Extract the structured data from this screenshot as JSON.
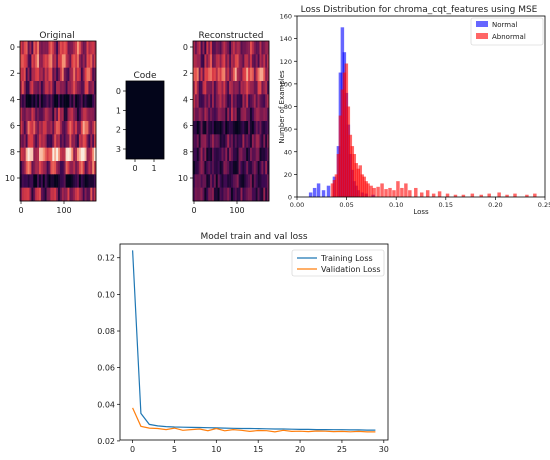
{
  "panels": {
    "original": {
      "title": "Original",
      "y_ticks": [
        "0",
        "2",
        "4",
        "6",
        "8",
        "10"
      ],
      "x_ticks": [
        "0",
        "100"
      ]
    },
    "code": {
      "title": "Code",
      "y_ticks": [
        "0",
        "1",
        "2",
        "3"
      ],
      "x_ticks": [
        "0",
        "1"
      ]
    },
    "reconstructed": {
      "title": "Reconstructed",
      "y_ticks": [
        "0",
        "2",
        "4",
        "6",
        "8",
        "10"
      ],
      "x_ticks": [
        "0",
        "100"
      ]
    }
  },
  "chart_data": [
    {
      "type": "heatmap",
      "title": "Original",
      "rows": 12,
      "x_tick_labels": [
        "0",
        "100"
      ],
      "y_tick_labels": [
        "0",
        "2",
        "4",
        "6",
        "8",
        "10"
      ],
      "row_intensity": [
        0.55,
        0.6,
        0.5,
        0.45,
        0.15,
        0.4,
        0.6,
        0.45,
        0.85,
        0.55,
        0.1,
        0.45
      ],
      "colormap": "rocket"
    },
    {
      "type": "heatmap",
      "title": "Code",
      "rows": 4,
      "cols": 2,
      "x_tick_labels": [
        "0",
        "1"
      ],
      "y_tick_labels": [
        "0",
        "1",
        "2",
        "3"
      ],
      "values": [
        [
          0,
          0
        ],
        [
          0,
          0
        ],
        [
          0,
          0
        ],
        [
          0,
          0
        ]
      ],
      "colormap": "rocket"
    },
    {
      "type": "heatmap",
      "title": "Reconstructed",
      "rows": 12,
      "x_tick_labels": [
        "0",
        "100"
      ],
      "y_tick_labels": [
        "0",
        "2",
        "4",
        "6",
        "8",
        "10"
      ],
      "row_intensity": [
        0.5,
        0.55,
        0.75,
        0.55,
        0.45,
        0.4,
        0.2,
        0.35,
        0.3,
        0.3,
        0.25,
        0.3
      ],
      "colormap": "rocket"
    },
    {
      "type": "bar",
      "title": "Loss Distribution for chroma_cqt_features using MSE",
      "xlabel": "Loss",
      "ylabel": "Number of Examples",
      "xlim": [
        0,
        0.25
      ],
      "ylim": [
        0,
        160
      ],
      "x_ticks": [
        "0.00",
        "0.05",
        "0.10",
        "0.15",
        "0.20",
        "0.25"
      ],
      "y_ticks": [
        "0",
        "20",
        "40",
        "60",
        "80",
        "100",
        "120",
        "140",
        "160"
      ],
      "legend_position": "top-right",
      "series": [
        {
          "name": "Normal",
          "color": "#0000ff",
          "bins": [
            [
              0.012,
              4
            ],
            [
              0.016,
              8
            ],
            [
              0.02,
              12
            ],
            [
              0.025,
              6
            ],
            [
              0.03,
              10
            ],
            [
              0.036,
              18
            ],
            [
              0.04,
              45
            ],
            [
              0.042,
              110
            ],
            [
              0.044,
              150
            ],
            [
              0.046,
              128
            ],
            [
              0.048,
              92
            ],
            [
              0.05,
              64
            ],
            [
              0.052,
              38
            ],
            [
              0.054,
              24
            ],
            [
              0.056,
              14
            ],
            [
              0.058,
              10
            ],
            [
              0.06,
              6
            ],
            [
              0.064,
              4
            ],
            [
              0.068,
              3
            ],
            [
              0.075,
              2
            ]
          ]
        },
        {
          "name": "Abnormal",
          "color": "#ff0000",
          "bins": [
            [
              0.034,
              12
            ],
            [
              0.036,
              15
            ],
            [
              0.038,
              20
            ],
            [
              0.04,
              38
            ],
            [
              0.042,
              72
            ],
            [
              0.044,
              95
            ],
            [
              0.046,
              110
            ],
            [
              0.048,
              118
            ],
            [
              0.05,
              80
            ],
            [
              0.052,
              55
            ],
            [
              0.054,
              45
            ],
            [
              0.056,
              38
            ],
            [
              0.058,
              30
            ],
            [
              0.06,
              25
            ],
            [
              0.062,
              28
            ],
            [
              0.064,
              20
            ],
            [
              0.066,
              18
            ],
            [
              0.068,
              14
            ],
            [
              0.07,
              12
            ],
            [
              0.073,
              10
            ],
            [
              0.076,
              8
            ],
            [
              0.08,
              9
            ],
            [
              0.084,
              12
            ],
            [
              0.088,
              7
            ],
            [
              0.092,
              8
            ],
            [
              0.096,
              6
            ],
            [
              0.1,
              14
            ],
            [
              0.104,
              8
            ],
            [
              0.108,
              12
            ],
            [
              0.112,
              6
            ],
            [
              0.118,
              8
            ],
            [
              0.124,
              4
            ],
            [
              0.13,
              6
            ],
            [
              0.136,
              3
            ],
            [
              0.142,
              5
            ],
            [
              0.15,
              3
            ],
            [
              0.158,
              2
            ],
            [
              0.166,
              2
            ],
            [
              0.175,
              3
            ],
            [
              0.184,
              2
            ],
            [
              0.192,
              3
            ],
            [
              0.202,
              4
            ],
            [
              0.21,
              2
            ],
            [
              0.218,
              3
            ],
            [
              0.23,
              2
            ],
            [
              0.238,
              3
            ]
          ]
        }
      ]
    },
    {
      "type": "line",
      "title": "Model train and val loss",
      "xlim": [
        -1.5,
        30.5
      ],
      "ylim": [
        0.0205,
        0.1275
      ],
      "x_ticks": [
        "0",
        "5",
        "10",
        "15",
        "20",
        "25",
        "30"
      ],
      "y_ticks": [
        "0.02",
        "0.04",
        "0.06",
        "0.08",
        "0.10",
        "0.12"
      ],
      "legend_position": "top-right",
      "series": [
        {
          "name": "Training Loss",
          "color": "#1f77b4",
          "x": [
            0,
            1,
            2,
            3,
            4,
            5,
            6,
            7,
            8,
            9,
            10,
            11,
            12,
            13,
            14,
            15,
            16,
            17,
            18,
            19,
            20,
            21,
            22,
            23,
            24,
            25,
            26,
            27,
            28,
            29
          ],
          "y": [
            0.124,
            0.035,
            0.029,
            0.0282,
            0.0278,
            0.0276,
            0.0275,
            0.0274,
            0.0273,
            0.0272,
            0.0271,
            0.027,
            0.0269,
            0.0268,
            0.0268,
            0.0267,
            0.0266,
            0.0265,
            0.0265,
            0.0264,
            0.0263,
            0.0263,
            0.0262,
            0.0262,
            0.0261,
            0.0261,
            0.026,
            0.026,
            0.0259,
            0.0259
          ]
        },
        {
          "name": "Validation Loss",
          "color": "#ff7f0e",
          "x": [
            0,
            1,
            2,
            3,
            4,
            5,
            6,
            7,
            8,
            9,
            10,
            11,
            12,
            13,
            14,
            15,
            16,
            17,
            18,
            19,
            20,
            21,
            22,
            23,
            24,
            25,
            26,
            27,
            28,
            29
          ],
          "y": [
            0.038,
            0.028,
            0.027,
            0.0268,
            0.0262,
            0.027,
            0.0258,
            0.0262,
            0.0265,
            0.0256,
            0.0268,
            0.0255,
            0.0262,
            0.0258,
            0.0252,
            0.0257,
            0.0256,
            0.0249,
            0.0258,
            0.0252,
            0.0253,
            0.0251,
            0.0254,
            0.0253,
            0.0251,
            0.0252,
            0.025,
            0.0252,
            0.0249,
            0.0249
          ]
        }
      ]
    }
  ]
}
